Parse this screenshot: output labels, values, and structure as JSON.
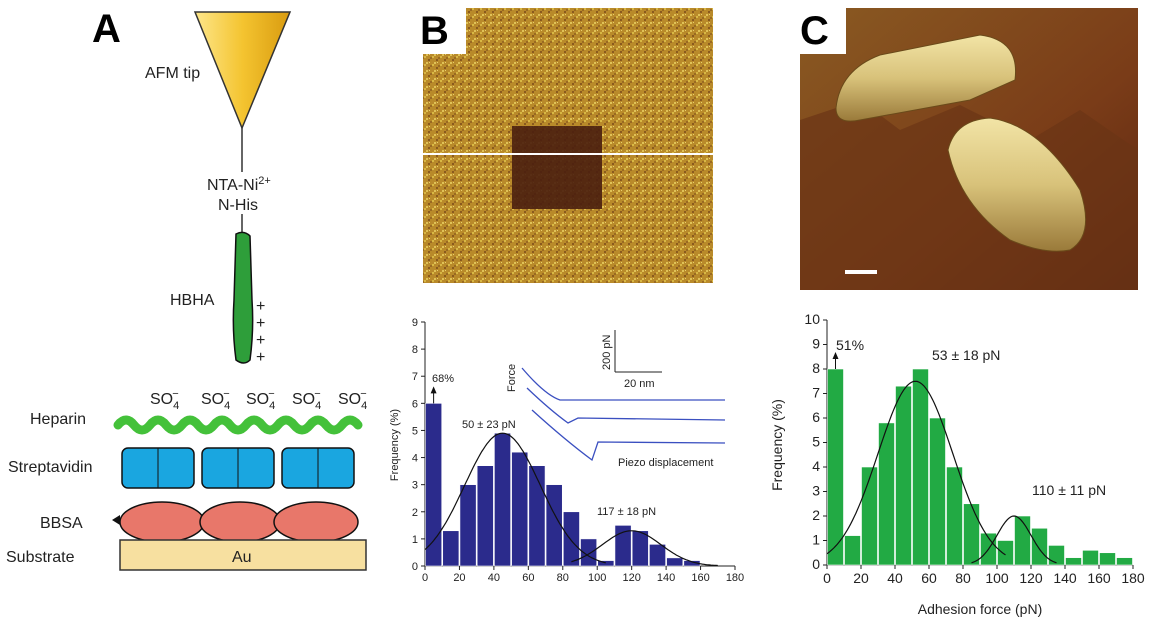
{
  "figure": {
    "panel_letters": {
      "a": "A",
      "b": "B",
      "c": "C"
    },
    "schematic": {
      "afm_tip": "AFM tip",
      "linker_top": "NTA-Ni",
      "linker_sup": "2+",
      "linker_bottom": "N-His",
      "hbha": "HBHA",
      "plus": "+",
      "so4_base": "SO",
      "so4_sub": "4",
      "so4_sup": "−",
      "heparin": "Heparin",
      "streptavidin": "Streptavidin",
      "bbsa": "BBSA",
      "substrate": "Substrate",
      "au": "Au"
    },
    "colors": {
      "tip": "#f4c430",
      "hbha": "#2e9e3a",
      "heparin": "#44c13a",
      "streptavidin": "#1aa6e0",
      "bbsa": "#e8776a",
      "substrate": "#f7e0a0",
      "hist_b": "#2b2b8c",
      "hist_c": "#22aa44",
      "fc_line": "#3a4fc0"
    }
  },
  "chart_data": [
    {
      "type": "bar",
      "panel": "B",
      "ylabel": "Frequency (%)",
      "xlabel": "",
      "xlim": [
        0,
        180
      ],
      "ylim": [
        0,
        9
      ],
      "xticks": [
        "0",
        "20",
        "40",
        "60",
        "80",
        "100",
        "120",
        "140",
        "160",
        "180"
      ],
      "yticks": [
        "0",
        "1",
        "2",
        "3",
        "4",
        "5",
        "6",
        "7",
        "8",
        "9"
      ],
      "bin_width": 10,
      "bins_start": [
        0,
        10,
        20,
        30,
        40,
        50,
        60,
        70,
        80,
        90,
        100,
        110,
        120,
        130,
        140,
        150
      ],
      "values": [
        6.0,
        1.3,
        3.0,
        3.7,
        4.9,
        4.2,
        3.7,
        3.0,
        2.0,
        1.0,
        0.2,
        1.5,
        1.3,
        0.8,
        0.3,
        0.2
      ],
      "annotations": [
        "68%",
        "50 ± 23 pN",
        "117 ± 18 pN"
      ],
      "inset": {
        "labels": [
          "Force",
          "200 pN",
          "20 nm",
          "Piezo displacement"
        ]
      }
    },
    {
      "type": "bar",
      "panel": "C",
      "ylabel": "Frequency (%)",
      "xlabel": "Adhesion force (pN)",
      "xlim": [
        0,
        180
      ],
      "ylim": [
        0,
        10
      ],
      "xticks": [
        "0",
        "20",
        "40",
        "60",
        "80",
        "100",
        "120",
        "140",
        "160",
        "180"
      ],
      "yticks": [
        "0",
        "1",
        "2",
        "3",
        "4",
        "5",
        "6",
        "7",
        "8",
        "9",
        "10"
      ],
      "bin_width": 10,
      "bins_start": [
        0,
        10,
        20,
        30,
        40,
        50,
        60,
        70,
        80,
        90,
        100,
        110,
        120,
        130,
        140,
        150,
        160,
        170
      ],
      "values": [
        8.0,
        1.2,
        4.0,
        5.8,
        7.3,
        8.0,
        6.0,
        4.0,
        2.5,
        1.3,
        1.0,
        2.0,
        1.5,
        0.8,
        0.3,
        0.6,
        0.5,
        0.3
      ],
      "annotations": [
        "51%",
        "53 ± 18 pN",
        "110 ± 11 pN"
      ]
    }
  ]
}
